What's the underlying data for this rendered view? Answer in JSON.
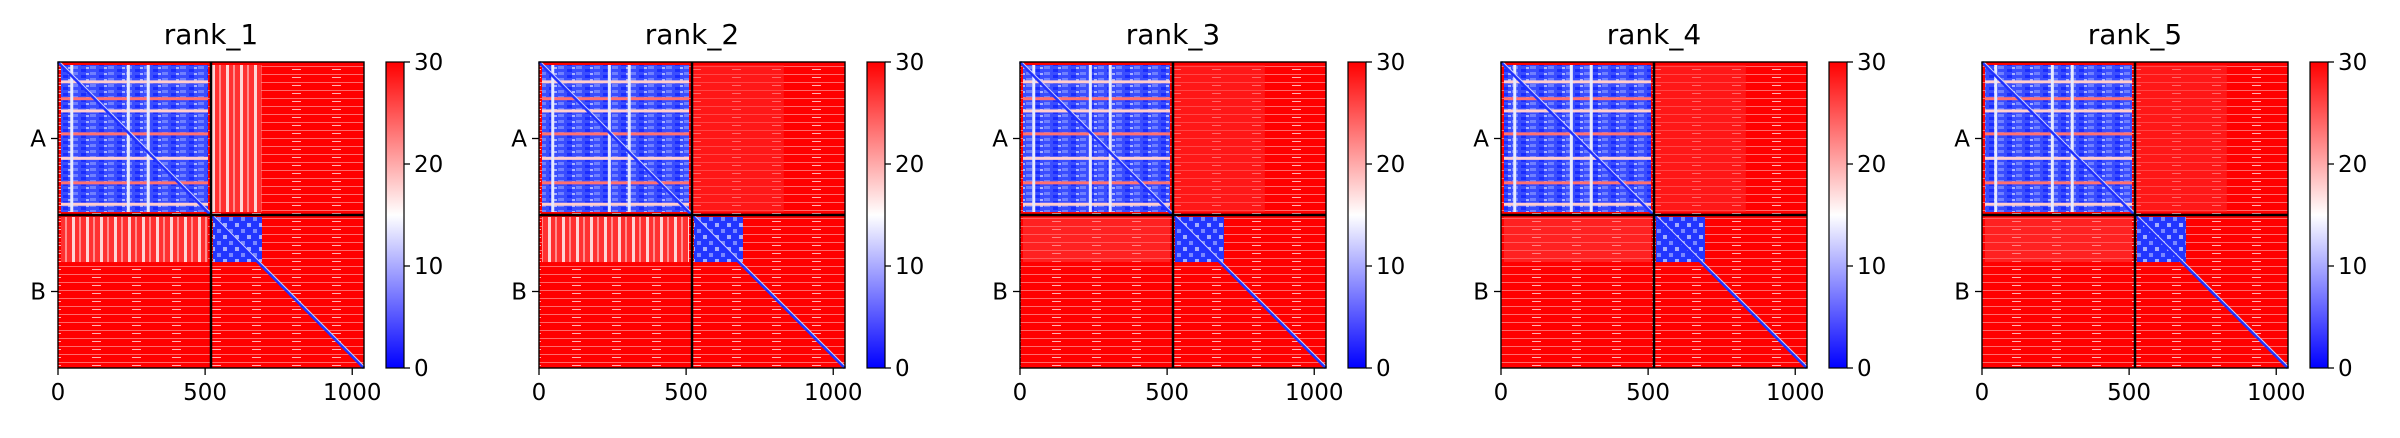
{
  "chart_data": {
    "type": "heatmap",
    "description_panels": [
      "rank_1",
      "rank_2",
      "rank_3",
      "rank_4",
      "rank_5"
    ],
    "panels": [
      {
        "title": "rank_1",
        "off_block_ab": "mixed",
        "off_block_ba": "mixed"
      },
      {
        "title": "rank_2",
        "off_block_ab": "high",
        "off_block_ba": "mixed"
      },
      {
        "title": "rank_3",
        "off_block_ab": "high",
        "off_block_ba": "high"
      },
      {
        "title": "rank_4",
        "off_block_ab": "high",
        "off_block_ba": "high"
      },
      {
        "title": "rank_5",
        "off_block_ab": "high",
        "off_block_ba": "high"
      }
    ],
    "matrix_size": 1040,
    "chain_boundaries": [
      0,
      520,
      1040
    ],
    "chain_labels": [
      "A",
      "B"
    ],
    "x_ticks": [
      0,
      500,
      1000
    ],
    "x_tick_labels": [
      "0",
      "500",
      "1000"
    ],
    "colorbar": {
      "range": [
        0,
        30
      ],
      "ticks": [
        0,
        10,
        20,
        30
      ],
      "tick_labels": [
        "0",
        "10",
        "20",
        "30"
      ],
      "colormap": "bwr",
      "colors": {
        "low": "#0000ff",
        "mid": "#ffffff",
        "high": "#ff0000"
      }
    },
    "grid": false
  }
}
